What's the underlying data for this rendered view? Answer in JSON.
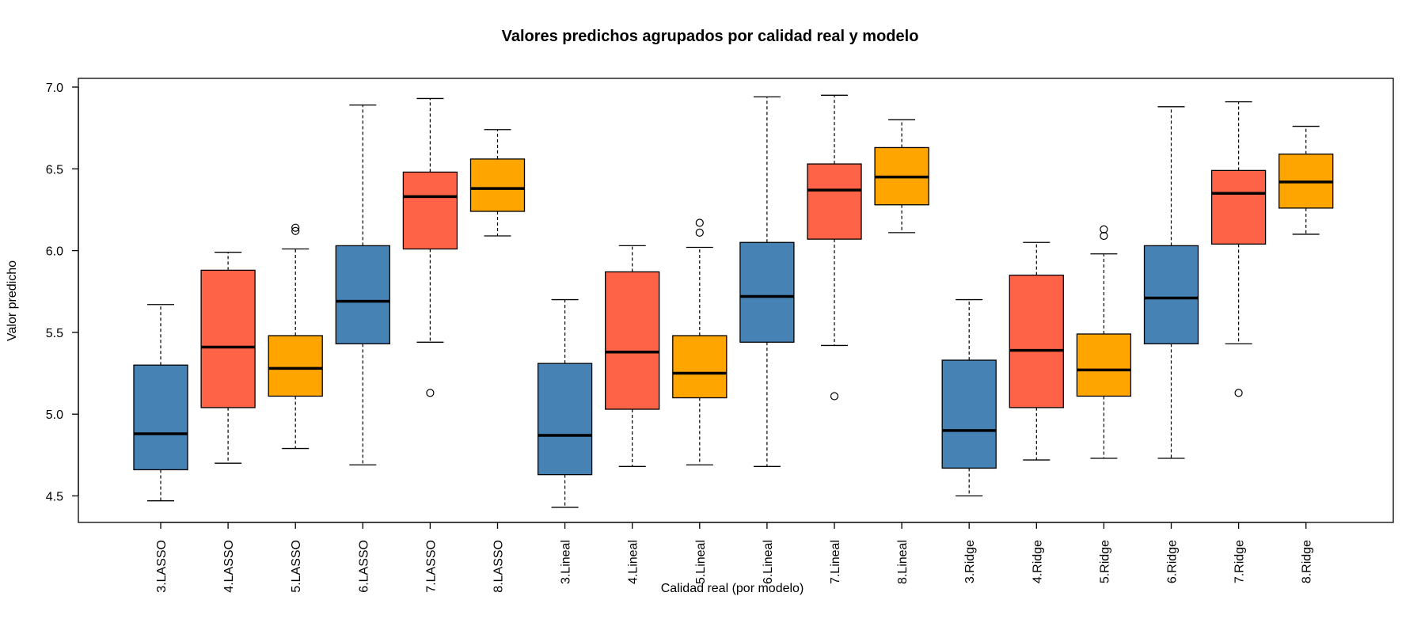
{
  "chart_data": {
    "type": "boxplot",
    "title": "Valores predichos agrupados por calidad real y modelo",
    "xlabel": "Calidad real (por modelo)",
    "ylabel": "Valor predicho",
    "ylim": [
      4.4,
      7.05
    ],
    "yticks": [
      "4.5",
      "5.0",
      "5.5",
      "6.0",
      "6.5",
      "7.0"
    ],
    "grid": false,
    "legend": "none",
    "colors": {
      "3": "#4682B4",
      "4": "#FF6347",
      "5": "#FFA500",
      "6": "#4682B4",
      "7": "#FF6347",
      "8": "#FFA500"
    },
    "categories": [
      "3.LASSO",
      "4.LASSO",
      "5.LASSO",
      "6.LASSO",
      "7.LASSO",
      "8.LASSO",
      "3.Lineal",
      "4.Lineal",
      "5.Lineal",
      "6.Lineal",
      "7.Lineal",
      "8.Lineal",
      "3.Ridge",
      "4.Ridge",
      "5.Ridge",
      "6.Ridge",
      "7.Ridge",
      "8.Ridge"
    ],
    "boxes": [
      {
        "label": "3.LASSO",
        "color": "#4682B4",
        "whisker_low": 4.47,
        "q1": 4.66,
        "median": 4.88,
        "q3": 5.3,
        "whisker_high": 5.67,
        "outliers": []
      },
      {
        "label": "4.LASSO",
        "color": "#FF6347",
        "whisker_low": 4.7,
        "q1": 5.04,
        "median": 5.41,
        "q3": 5.88,
        "whisker_high": 5.99,
        "outliers": []
      },
      {
        "label": "5.LASSO",
        "color": "#FFA500",
        "whisker_low": 4.79,
        "q1": 5.11,
        "median": 5.28,
        "q3": 5.48,
        "whisker_high": 6.01,
        "outliers": [
          6.12,
          6.14
        ]
      },
      {
        "label": "6.LASSO",
        "color": "#4682B4",
        "whisker_low": 4.69,
        "q1": 5.43,
        "median": 5.69,
        "q3": 6.03,
        "whisker_high": 6.89,
        "outliers": []
      },
      {
        "label": "7.LASSO",
        "color": "#FF6347",
        "whisker_low": 5.44,
        "q1": 6.01,
        "median": 6.33,
        "q3": 6.48,
        "whisker_high": 6.93,
        "outliers": [
          5.13
        ]
      },
      {
        "label": "8.LASSO",
        "color": "#FFA500",
        "whisker_low": 6.09,
        "q1": 6.24,
        "median": 6.38,
        "q3": 6.56,
        "whisker_high": 6.74,
        "outliers": []
      },
      {
        "label": "3.Lineal",
        "color": "#4682B4",
        "whisker_low": 4.43,
        "q1": 4.63,
        "median": 4.87,
        "q3": 5.31,
        "whisker_high": 5.7,
        "outliers": []
      },
      {
        "label": "4.Lineal",
        "color": "#FF6347",
        "whisker_low": 4.68,
        "q1": 5.03,
        "median": 5.38,
        "q3": 5.87,
        "whisker_high": 6.03,
        "outliers": []
      },
      {
        "label": "5.Lineal",
        "color": "#FFA500",
        "whisker_low": 4.69,
        "q1": 5.1,
        "median": 5.25,
        "q3": 5.48,
        "whisker_high": 6.02,
        "outliers": [
          6.11,
          6.17
        ]
      },
      {
        "label": "6.Lineal",
        "color": "#4682B4",
        "whisker_low": 4.68,
        "q1": 5.44,
        "median": 5.72,
        "q3": 6.05,
        "whisker_high": 6.94,
        "outliers": []
      },
      {
        "label": "7.Lineal",
        "color": "#FF6347",
        "whisker_low": 5.42,
        "q1": 6.07,
        "median": 6.37,
        "q3": 6.53,
        "whisker_high": 6.95,
        "outliers": [
          5.11
        ]
      },
      {
        "label": "8.Lineal",
        "color": "#FFA500",
        "whisker_low": 6.11,
        "q1": 6.28,
        "median": 6.45,
        "q3": 6.63,
        "whisker_high": 6.8,
        "outliers": []
      },
      {
        "label": "3.Ridge",
        "color": "#4682B4",
        "whisker_low": 4.5,
        "q1": 4.67,
        "median": 4.9,
        "q3": 5.33,
        "whisker_high": 5.7,
        "outliers": []
      },
      {
        "label": "4.Ridge",
        "color": "#FF6347",
        "whisker_low": 4.72,
        "q1": 5.04,
        "median": 5.39,
        "q3": 5.85,
        "whisker_high": 6.05,
        "outliers": []
      },
      {
        "label": "5.Ridge",
        "color": "#FFA500",
        "whisker_low": 4.73,
        "q1": 5.11,
        "median": 5.27,
        "q3": 5.49,
        "whisker_high": 5.98,
        "outliers": [
          6.09,
          6.13
        ]
      },
      {
        "label": "6.Ridge",
        "color": "#4682B4",
        "whisker_low": 4.73,
        "q1": 5.43,
        "median": 5.71,
        "q3": 6.03,
        "whisker_high": 6.88,
        "outliers": []
      },
      {
        "label": "7.Ridge",
        "color": "#FF6347",
        "whisker_low": 5.43,
        "q1": 6.04,
        "median": 6.35,
        "q3": 6.49,
        "whisker_high": 6.91,
        "outliers": [
          5.13
        ]
      },
      {
        "label": "8.Ridge",
        "color": "#FFA500",
        "whisker_low": 6.1,
        "q1": 6.26,
        "median": 6.42,
        "q3": 6.59,
        "whisker_high": 6.76,
        "outliers": []
      }
    ]
  }
}
